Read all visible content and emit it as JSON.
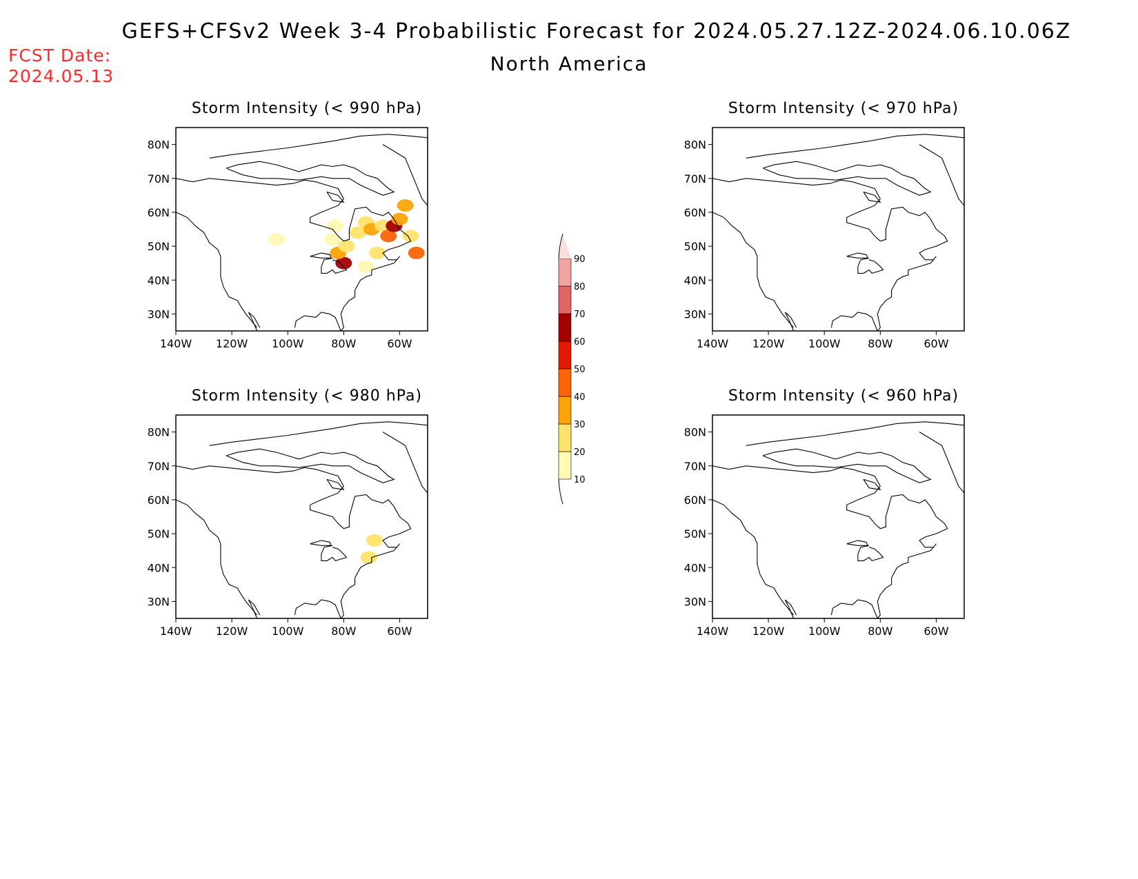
{
  "header": {
    "title": "GEFS+CFSv2 Week 3-4 Probabilistic Forecast for 2024.05.27.12Z-2024.06.10.06Z",
    "subtitle": "North America",
    "fcst_label": "FCST Date:",
    "fcst_date": "2024.05.13"
  },
  "axes": {
    "lat_ticks": [
      "80N",
      "70N",
      "60N",
      "50N",
      "40N",
      "30N"
    ],
    "lon_ticks": [
      "140W",
      "120W",
      "100W",
      "80W",
      "60W"
    ],
    "lat_values": [
      80,
      70,
      60,
      50,
      40,
      30
    ],
    "lon_values": [
      -140,
      -120,
      -100,
      -80,
      -60
    ],
    "lat_range": [
      25,
      85
    ],
    "lon_range": [
      -140,
      -50
    ]
  },
  "panels": [
    {
      "title": "Storm Intensity (< 990 hPa)",
      "regions": [
        {
          "lon": -80,
          "lat": 45,
          "level": 60
        },
        {
          "lon": -82,
          "lat": 48,
          "level": 30
        },
        {
          "lon": -79,
          "lat": 50,
          "level": 20
        },
        {
          "lon": -75,
          "lat": 54,
          "level": 20
        },
        {
          "lon": -72,
          "lat": 57,
          "level": 20
        },
        {
          "lon": -70,
          "lat": 55,
          "level": 30
        },
        {
          "lon": -66,
          "lat": 56,
          "level": 20
        },
        {
          "lon": -64,
          "lat": 53,
          "level": 40
        },
        {
          "lon": -62,
          "lat": 56,
          "level": 60
        },
        {
          "lon": -60,
          "lat": 58,
          "level": 30
        },
        {
          "lon": -58,
          "lat": 62,
          "level": 30
        },
        {
          "lon": -56,
          "lat": 53,
          "level": 20
        },
        {
          "lon": -54,
          "lat": 48,
          "level": 40
        },
        {
          "lon": -68,
          "lat": 48,
          "level": 20
        },
        {
          "lon": -72,
          "lat": 44,
          "level": 10
        },
        {
          "lon": -84,
          "lat": 52,
          "level": 10
        },
        {
          "lon": -104,
          "lat": 52,
          "level": 10
        },
        {
          "lon": -83,
          "lat": 56,
          "level": 10
        }
      ]
    },
    {
      "title": "Storm Intensity (< 970 hPa)",
      "regions": []
    },
    {
      "title": "Storm Intensity (< 980 hPa)",
      "regions": [
        {
          "lon": -69,
          "lat": 48,
          "level": 20
        },
        {
          "lon": -71,
          "lat": 43,
          "level": 20
        }
      ]
    },
    {
      "title": "Storm Intensity (< 960 hPa)",
      "regions": []
    }
  ],
  "colorbar": {
    "labels": [
      "90",
      "80",
      "70",
      "60",
      "50",
      "40",
      "30",
      "20",
      "10"
    ],
    "levels": [
      10,
      20,
      30,
      40,
      50,
      60,
      70,
      80,
      90
    ],
    "colors": [
      "#fff9b3",
      "#fde36b",
      "#fca40a",
      "#fb6408",
      "#e11a00",
      "#a50000",
      "#e06565",
      "#f2a3a3",
      "#fddede"
    ]
  }
}
